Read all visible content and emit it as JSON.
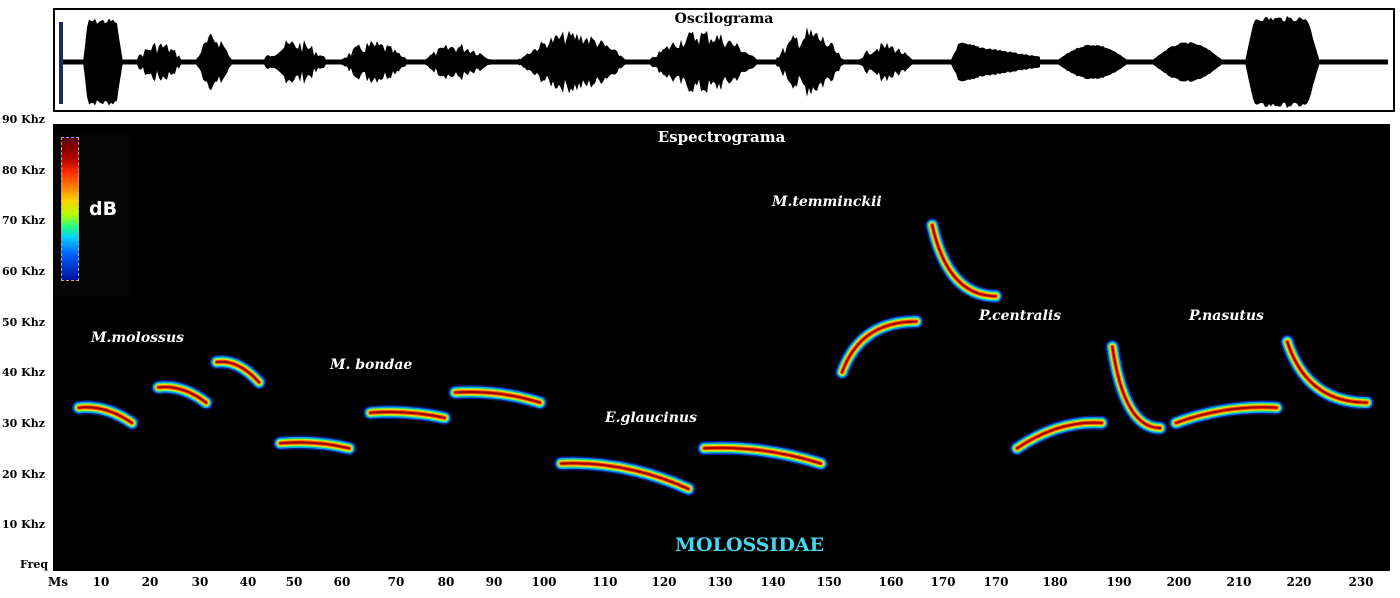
{
  "oscillogram": {
    "title": "Oscilograma"
  },
  "spectrogram": {
    "title": "Espectrograma",
    "colorbar_label": "dB",
    "family_label": "MOLOSSIDAE",
    "species": [
      {
        "name": "M.molossus"
      },
      {
        "name": "M. bondae"
      },
      {
        "name": "E.glaucinus"
      },
      {
        "name": "M.temminckii"
      },
      {
        "name": "P.centralis"
      },
      {
        "name": "P.nasutus"
      }
    ],
    "calls": [
      {
        "species": "M.molossus",
        "time_ms": [
          3,
          13
        ],
        "freq_khz": [
          33,
          30
        ]
      },
      {
        "species": "M.molossus",
        "time_ms": [
          18,
          27
        ],
        "freq_khz": [
          37,
          34
        ]
      },
      {
        "species": "M.molossus",
        "time_ms": [
          29,
          37
        ],
        "freq_khz": [
          42,
          38
        ]
      },
      {
        "species": "M. bondae",
        "time_ms": [
          41,
          54
        ],
        "freq_khz": [
          26,
          25
        ]
      },
      {
        "species": "M. bondae",
        "time_ms": [
          58,
          72
        ],
        "freq_khz": [
          32,
          31
        ]
      },
      {
        "species": "M. bondae",
        "time_ms": [
          74,
          90
        ],
        "freq_khz": [
          36,
          34
        ]
      },
      {
        "species": "E.glaucinus",
        "time_ms": [
          94,
          118
        ],
        "freq_khz": [
          22,
          17
        ]
      },
      {
        "species": "E.glaucinus",
        "time_ms": [
          121,
          143
        ],
        "freq_khz": [
          25,
          22
        ]
      },
      {
        "species": "M.temminckii",
        "time_ms": [
          147,
          161
        ],
        "freq_khz": [
          40,
          50
        ]
      },
      {
        "species": "M.temminckii",
        "time_ms": [
          164,
          176
        ],
        "freq_khz": [
          69,
          55
        ]
      },
      {
        "species": "P.centralis",
        "time_ms": [
          180,
          196
        ],
        "freq_khz": [
          25,
          30
        ]
      },
      {
        "species": "P.centralis",
        "time_ms": [
          198,
          207
        ],
        "freq_khz": [
          45,
          29
        ]
      },
      {
        "species": "P.nasutus",
        "time_ms": [
          210,
          229
        ],
        "freq_khz": [
          30,
          33
        ]
      },
      {
        "species": "P.nasutus",
        "time_ms": [
          231,
          246
        ],
        "freq_khz": [
          46,
          34
        ]
      }
    ]
  },
  "axes": {
    "y_labels": [
      "90 Khz",
      "80 Khz",
      "70 Khz",
      "60 Khz",
      "50 Khz",
      "40 Khz",
      "30 Khz",
      "20 Khz",
      "10 Khz",
      "Freq"
    ],
    "x_unit_label": "Ms",
    "x_ticks": [
      "10",
      "20",
      "30",
      "40",
      "50",
      "60",
      "70",
      "80",
      "90",
      "100",
      "110",
      "120",
      "130",
      "140",
      "150",
      "160",
      "170",
      "170",
      "180",
      "190",
      "200",
      "210",
      "220",
      "230"
    ]
  }
}
